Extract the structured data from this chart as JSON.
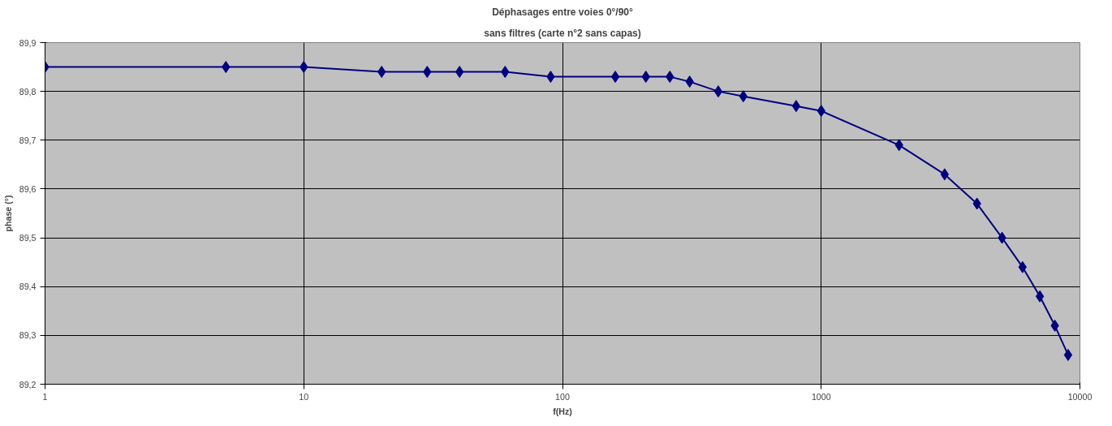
{
  "chart_data": {
    "type": "line",
    "title": "Déphasages entre voies 0°/90°",
    "subtitle": "sans filtres (carte n°2 sans capas)",
    "xlabel": "f(Hz)",
    "ylabel": "phase (°)",
    "log": "x",
    "x": [
      1,
      5,
      10,
      20,
      30,
      40,
      60,
      90,
      160,
      210,
      260,
      310,
      400,
      500,
      800,
      1000,
      2000,
      3000,
      4000,
      5000,
      6000,
      7000,
      8000,
      9000
    ],
    "series": [
      {
        "color": "#000080",
        "values": [
          89.85,
          89.85,
          89.85,
          89.84,
          89.84,
          89.84,
          89.84,
          89.83,
          89.83,
          89.83,
          89.83,
          89.82,
          89.8,
          89.79,
          89.77,
          89.76,
          89.69,
          89.63,
          89.57,
          89.5,
          89.44,
          89.38,
          89.32,
          89.26
        ]
      }
    ],
    "xlim": [
      1,
      10000
    ],
    "xticks": [
      1,
      10,
      100,
      1000,
      10000
    ],
    "ylim": [
      89.2,
      89.9
    ],
    "yticks": [
      {
        "value": 89.2,
        "label": "89,2"
      },
      {
        "value": 89.3,
        "label": "89,3"
      },
      {
        "value": 89.4,
        "label": "89,4"
      },
      {
        "value": 89.5,
        "label": "89,5"
      },
      {
        "value": 89.6,
        "label": "89,6"
      },
      {
        "value": 89.7,
        "label": "89,7"
      },
      {
        "value": 89.8,
        "label": "89,8"
      },
      {
        "value": 89.9,
        "label": "89,9"
      }
    ],
    "grid": true,
    "marker": "diamond",
    "line_style": "solid"
  }
}
